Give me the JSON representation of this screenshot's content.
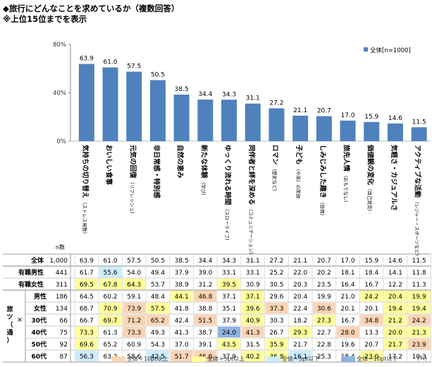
{
  "header": {
    "title": "◆旅行にどんなことを求めているか（複数回答）",
    "subtitle": "※上位15位までを表示"
  },
  "colors": {
    "bar": "#4f81bd",
    "high10": "#fbd4b4",
    "high5": "#ffff99",
    "low5": "#ccecff",
    "low10": "#8db3e2"
  },
  "chart_data": {
    "type": "bar",
    "ylim": [
      0,
      80
    ],
    "yticks": [
      "0%",
      "40%",
      "80%"
    ],
    "legend": "全体[n=1000]",
    "legend_position": "top-right",
    "categories": [
      {
        "label": "気持ちの切り替え",
        "sub": "（ストレス発散）",
        "value": 63.9
      },
      {
        "label": "おいしい食事",
        "sub": "",
        "value": 61.0
      },
      {
        "label": "元気の回復",
        "sub": "（リフレッシュ）",
        "value": 57.5
      },
      {
        "label": "非日常感・特別感",
        "sub": "",
        "value": 50.5
      },
      {
        "label": "自然の恵み",
        "sub": "",
        "value": 38.5
      },
      {
        "label": "新たな体験",
        "sub": "（学び）",
        "value": 34.4
      },
      {
        "label": "ゆっくり流れる時間",
        "sub": "（スローライフ）",
        "value": 34.3
      },
      {
        "label": "同伴者と絆を深める",
        "sub": "（コミュニケーション）",
        "value": 31.1
      },
      {
        "label": "ロマン",
        "sub": "（歴史など）",
        "value": 27.2
      },
      {
        "label": "子ども",
        "sub": "（や孫）の笑顔",
        "value": 21.1
      },
      {
        "label": "しみじみした趣き",
        "sub": "（旅情）",
        "value": 20.7
      },
      {
        "label": "旅先人情",
        "sub": "（おもてなし）",
        "value": 17.0
      },
      {
        "label": "価値観の変化",
        "sub": "（自己発見）",
        "value": 15.9
      },
      {
        "label": "気軽さ・カジュアルさ",
        "sub": "",
        "value": 14.6
      },
      {
        "label": "アクティブな活動",
        "sub": "（レジャー・スポーツなど）",
        "value": 11.5
      }
    ],
    "table": {
      "n_header": "n数",
      "group_label": "旅ツ（通）",
      "x_mark": "×",
      "rows": [
        {
          "label": "全体",
          "n": "1,000",
          "values": [
            63.9,
            61.0,
            57.5,
            50.5,
            38.5,
            34.4,
            34.3,
            31.1,
            27.2,
            21.1,
            20.7,
            17.0,
            15.9,
            14.6,
            11.5
          ],
          "hl": [
            0,
            0,
            0,
            0,
            0,
            0,
            0,
            0,
            0,
            0,
            0,
            0,
            0,
            0,
            0
          ]
        },
        {
          "label": "有職男性",
          "n": "441",
          "values": [
            61.7,
            55.6,
            54.0,
            49.4,
            37.9,
            39.0,
            33.1,
            33.1,
            25.2,
            22.0,
            20.2,
            18.1,
            18.4,
            14.1,
            11.8
          ],
          "hl": [
            0,
            -1,
            0,
            0,
            0,
            0,
            0,
            0,
            0,
            0,
            0,
            0,
            0,
            0,
            0
          ]
        },
        {
          "label": "有職女性",
          "n": "311",
          "values": [
            69.5,
            67.8,
            64.3,
            53.7,
            38.9,
            31.2,
            39.5,
            30.9,
            30.5,
            20.3,
            23.5,
            16.4,
            16.7,
            12.2,
            11.3
          ],
          "hl": [
            1,
            1,
            1,
            0,
            0,
            0,
            1,
            0,
            0,
            0,
            0,
            0,
            0,
            0,
            0
          ]
        },
        {
          "label": "男性",
          "n": "186",
          "values": [
            64.5,
            60.2,
            59.1,
            48.4,
            44.1,
            46.8,
            37.1,
            37.1,
            29.6,
            20.4,
            19.9,
            21.0,
            24.2,
            20.4,
            19.9
          ],
          "hl": [
            0,
            0,
            0,
            0,
            1,
            2,
            0,
            1,
            0,
            0,
            0,
            0,
            1,
            1,
            1
          ]
        },
        {
          "label": "女性",
          "n": "134",
          "values": [
            68.7,
            70.9,
            73.9,
            57.5,
            41.8,
            38.8,
            35.1,
            39.6,
            37.3,
            22.4,
            30.6,
            20.1,
            20.1,
            19.4,
            19.4
          ],
          "hl": [
            0,
            1,
            2,
            1,
            0,
            0,
            0,
            1,
            2,
            0,
            2,
            0,
            0,
            1,
            1
          ]
        },
        {
          "label": "30代",
          "n": "66",
          "values": [
            66.7,
            69.7,
            71.2,
            65.2,
            42.4,
            51.5,
            37.9,
            40.9,
            30.3,
            18.2,
            27.3,
            16.7,
            34.8,
            21.2,
            24.2
          ],
          "hl": [
            0,
            1,
            2,
            2,
            0,
            2,
            0,
            1,
            0,
            0,
            1,
            0,
            2,
            1,
            2
          ]
        },
        {
          "label": "40代",
          "n": "75",
          "values": [
            73.3,
            61.3,
            73.3,
            49.3,
            41.3,
            38.7,
            24.0,
            41.3,
            26.7,
            29.3,
            22.7,
            28.0,
            13.3,
            20.0,
            21.3
          ],
          "hl": [
            1,
            0,
            2,
            0,
            0,
            0,
            -2,
            2,
            0,
            1,
            0,
            2,
            0,
            1,
            1
          ]
        },
        {
          "label": "50代",
          "n": "92",
          "values": [
            69.6,
            65.2,
            60.9,
            54.3,
            37.0,
            39.1,
            43.5,
            31.5,
            35.9,
            21.7,
            22.8,
            19.6,
            20.7,
            21.7,
            23.9
          ],
          "hl": [
            1,
            0,
            0,
            0,
            0,
            0,
            1,
            0,
            1,
            0,
            0,
            0,
            0,
            1,
            2
          ]
        },
        {
          "label": "60代",
          "n": "87",
          "values": [
            56.3,
            63.2,
            58.6,
            42.5,
            51.7,
            46.0,
            37.9,
            40.2,
            36.8,
            16.1,
            25.3,
            18.4,
            23.0,
            17.2,
            10.3
          ],
          "hl": [
            -1,
            0,
            0,
            -1,
            2,
            2,
            0,
            1,
            1,
            -1,
            0,
            0,
            1,
            0,
            0
          ]
        }
      ]
    }
  },
  "footer": {
    "high10": "全体＋10pt以上",
    "high5": "全体＋5pt以上",
    "low5": "全体－5pt以下",
    "low10": "全体－10pt以下",
    "unit": "(%)"
  }
}
